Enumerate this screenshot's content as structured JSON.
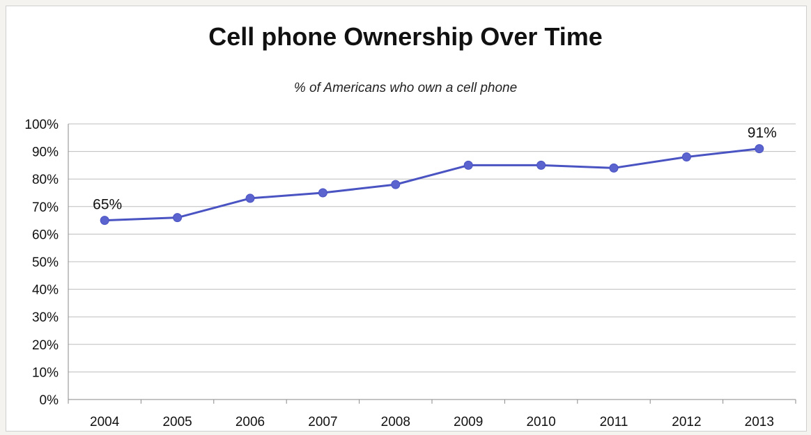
{
  "chart_data": {
    "type": "line",
    "title": "Cell phone Ownership Over Time",
    "subtitle": "% of Americans who own a cell phone",
    "xlabel": "",
    "ylabel": "",
    "categories": [
      "2004",
      "2005",
      "2006",
      "2007",
      "2008",
      "2009",
      "2010",
      "2011",
      "2012",
      "2013"
    ],
    "series": [
      {
        "values": [
          65,
          66,
          73,
          75,
          78,
          85,
          85,
          84,
          88,
          91
        ]
      }
    ],
    "ylim": [
      0,
      100
    ],
    "yticks": [
      "0%",
      "10%",
      "20%",
      "30%",
      "40%",
      "50%",
      "60%",
      "70%",
      "80%",
      "90%",
      "100%"
    ],
    "data_labels": [
      {
        "index": 0,
        "text": "65%"
      },
      {
        "index": 9,
        "text": "91%"
      }
    ],
    "grid": true,
    "legend": "none",
    "line_color": "#4a53c2",
    "marker_color": "#5b63cf"
  }
}
